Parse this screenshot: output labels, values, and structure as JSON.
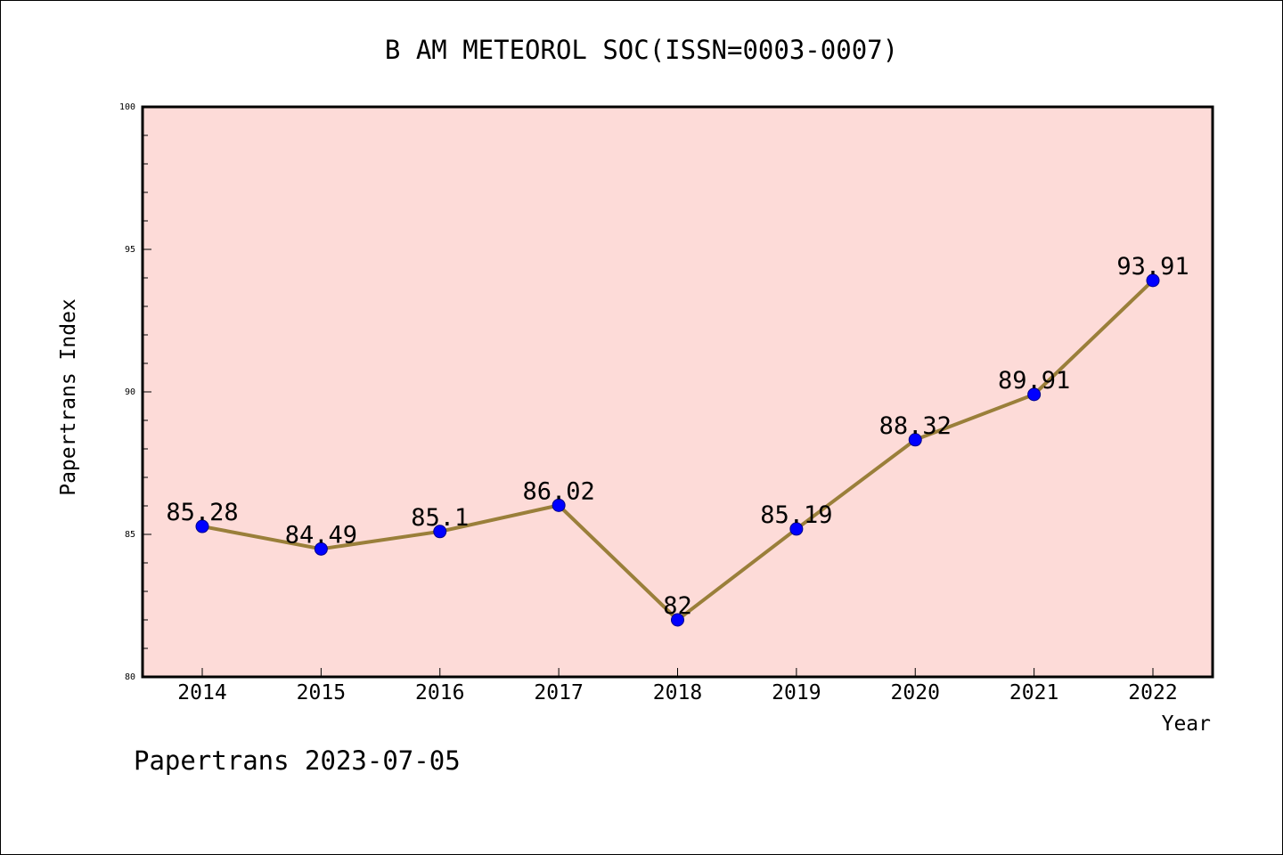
{
  "title": "B AM METEOROL SOC(ISSN=0003-0007)",
  "footer": "Papertrans 2023-07-05",
  "colors": {
    "plot_background": "#fddbd8",
    "line": "#9a7f3a",
    "marker": "#0000ff",
    "axis": "#000000"
  },
  "chart_data": {
    "type": "line",
    "title": "B AM METEOROL SOC(ISSN=0003-0007)",
    "xlabel": "Year",
    "ylabel": "Papertrans Index",
    "categories": [
      "2014",
      "2015",
      "2016",
      "2017",
      "2018",
      "2019",
      "2020",
      "2021",
      "2022"
    ],
    "values": [
      85.28,
      84.49,
      85.1,
      86.02,
      82,
      85.19,
      88.32,
      89.91,
      93.91
    ],
    "data_labels": [
      "85.28",
      "84.49",
      "85.1",
      "86.02",
      "82",
      "85.19",
      "88.32",
      "89.91",
      "93.91"
    ],
    "ylim": [
      80,
      100
    ],
    "yticks": [
      "80",
      "85",
      "90",
      "95",
      "100"
    ],
    "grid": false,
    "legend": "none"
  }
}
